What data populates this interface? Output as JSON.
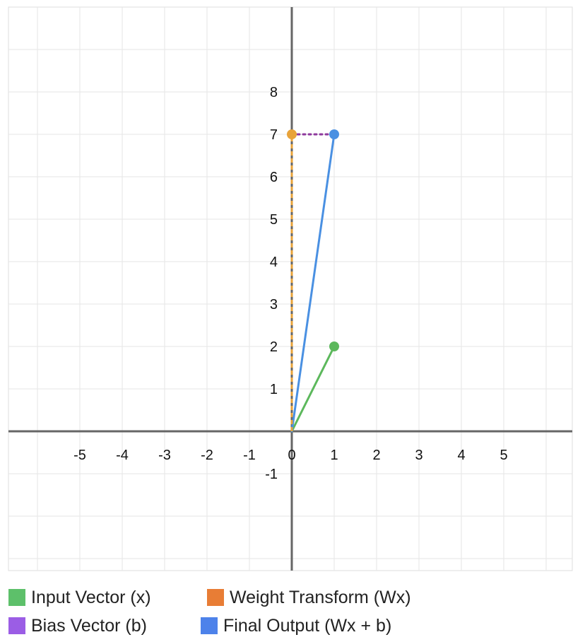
{
  "chart_data": {
    "type": "line",
    "title": "",
    "xlabel": "",
    "ylabel": "",
    "xlim": [
      -6.7,
      6.6
    ],
    "ylim": [
      -3.3,
      10
    ],
    "grid": true,
    "legend_placement": "bottom",
    "x_ticks": [
      -5,
      -4,
      -3,
      -2,
      -1,
      0,
      1,
      2,
      3,
      4,
      5
    ],
    "x_tick_labels": [
      "-5",
      "-4",
      "-3",
      "-2",
      "-1",
      "0",
      "1",
      "2",
      "3",
      "4",
      "5"
    ],
    "y_ticks": [
      -1,
      1,
      2,
      3,
      4,
      5,
      6,
      7,
      8
    ],
    "y_tick_labels": [
      "-1",
      "1",
      "2",
      "3",
      "4",
      "5",
      "6",
      "7",
      "8"
    ],
    "series": [
      {
        "name": "Input Vector (x)",
        "color": "#5cb85c",
        "style": "solid",
        "points": [
          [
            0,
            0
          ],
          [
            1,
            2
          ]
        ]
      },
      {
        "name": "Weight Transform (Wx)",
        "color": "#e8a33a",
        "style": "dashed",
        "points": [
          [
            0,
            0
          ],
          [
            0,
            7
          ]
        ]
      },
      {
        "name": "Bias Vector (b)",
        "color": "#8e3a9d",
        "style": "dotted",
        "points": [
          [
            0,
            7
          ],
          [
            1,
            7
          ]
        ]
      },
      {
        "name": "Final Output (Wx + b)",
        "color": "#4a90e2",
        "style": "solid",
        "points": [
          [
            0,
            0
          ],
          [
            1,
            7
          ]
        ]
      }
    ],
    "legend": [
      {
        "label": "Input Vector (x)",
        "color": "#5dc06a"
      },
      {
        "label": "Weight Transform (Wx)",
        "color": "#e87d35"
      },
      {
        "label": "Bias Vector (b)",
        "color": "#9b5de5"
      },
      {
        "label": "Final Output (Wx + b)",
        "color": "#4d82ea"
      }
    ]
  }
}
